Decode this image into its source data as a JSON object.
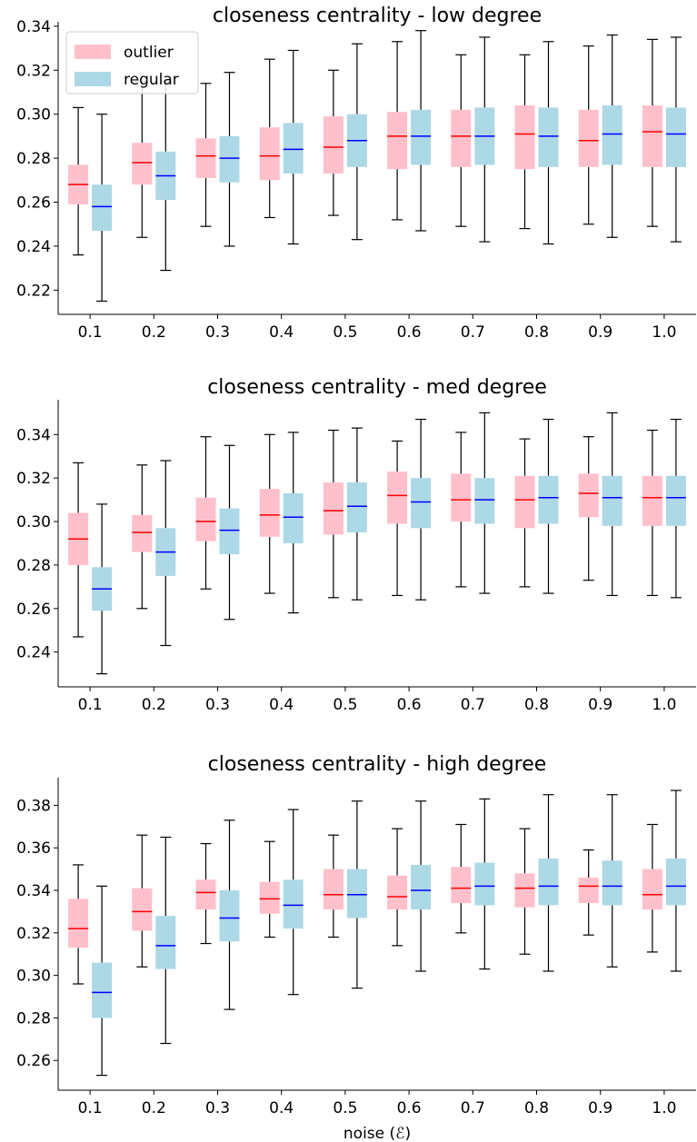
{
  "chart_data": [
    {
      "type": "box",
      "title": "closeness centrality - low degree",
      "xlabel": "",
      "ylabel": "",
      "ylim": [
        0.209,
        0.342
      ],
      "yticks": [
        "0.22",
        "0.24",
        "0.26",
        "0.28",
        "0.30",
        "0.32",
        "0.34"
      ],
      "categories": [
        "0.1",
        "0.2",
        "0.3",
        "0.4",
        "0.5",
        "0.6",
        "0.7",
        "0.8",
        "0.9",
        "1.0"
      ],
      "legend": {
        "position": "top-left",
        "entries": [
          "outlier",
          "regular"
        ]
      },
      "series": [
        {
          "name": "outlier",
          "color": "#ffc0cb",
          "median_color": "#ff0000",
          "boxes": [
            {
              "min": 0.236,
              "q1": 0.259,
              "median": 0.268,
              "q3": 0.277,
              "max": 0.303
            },
            {
              "min": 0.244,
              "q1": 0.268,
              "median": 0.278,
              "q3": 0.287,
              "max": 0.315
            },
            {
              "min": 0.249,
              "q1": 0.271,
              "median": 0.281,
              "q3": 0.289,
              "max": 0.314
            },
            {
              "min": 0.253,
              "q1": 0.27,
              "median": 0.281,
              "q3": 0.294,
              "max": 0.325
            },
            {
              "min": 0.254,
              "q1": 0.273,
              "median": 0.285,
              "q3": 0.299,
              "max": 0.32
            },
            {
              "min": 0.252,
              "q1": 0.275,
              "median": 0.29,
              "q3": 0.301,
              "max": 0.333
            },
            {
              "min": 0.249,
              "q1": 0.276,
              "median": 0.29,
              "q3": 0.302,
              "max": 0.327
            },
            {
              "min": 0.248,
              "q1": 0.275,
              "median": 0.291,
              "q3": 0.304,
              "max": 0.327
            },
            {
              "min": 0.25,
              "q1": 0.276,
              "median": 0.288,
              "q3": 0.302,
              "max": 0.331
            },
            {
              "min": 0.249,
              "q1": 0.276,
              "median": 0.292,
              "q3": 0.304,
              "max": 0.334
            }
          ]
        },
        {
          "name": "regular",
          "color": "#add8e6",
          "median_color": "#0000ff",
          "boxes": [
            {
              "min": 0.215,
              "q1": 0.247,
              "median": 0.258,
              "q3": 0.268,
              "max": 0.3
            },
            {
              "min": 0.229,
              "q1": 0.261,
              "median": 0.272,
              "q3": 0.283,
              "max": 0.315
            },
            {
              "min": 0.24,
              "q1": 0.269,
              "median": 0.28,
              "q3": 0.29,
              "max": 0.319
            },
            {
              "min": 0.241,
              "q1": 0.273,
              "median": 0.284,
              "q3": 0.296,
              "max": 0.329
            },
            {
              "min": 0.243,
              "q1": 0.276,
              "median": 0.288,
              "q3": 0.3,
              "max": 0.332
            },
            {
              "min": 0.247,
              "q1": 0.277,
              "median": 0.29,
              "q3": 0.302,
              "max": 0.338
            },
            {
              "min": 0.242,
              "q1": 0.277,
              "median": 0.29,
              "q3": 0.303,
              "max": 0.335
            },
            {
              "min": 0.241,
              "q1": 0.276,
              "median": 0.29,
              "q3": 0.303,
              "max": 0.333
            },
            {
              "min": 0.244,
              "q1": 0.277,
              "median": 0.291,
              "q3": 0.304,
              "max": 0.336
            },
            {
              "min": 0.242,
              "q1": 0.276,
              "median": 0.291,
              "q3": 0.303,
              "max": 0.335
            }
          ]
        }
      ]
    },
    {
      "type": "box",
      "title": "closeness centrality - med degree",
      "xlabel": "",
      "ylabel": "",
      "ylim": [
        0.224,
        0.356
      ],
      "yticks": [
        "0.24",
        "0.26",
        "0.28",
        "0.30",
        "0.32",
        "0.34"
      ],
      "categories": [
        "0.1",
        "0.2",
        "0.3",
        "0.4",
        "0.5",
        "0.6",
        "0.7",
        "0.8",
        "0.9",
        "1.0"
      ],
      "series": [
        {
          "name": "outlier",
          "color": "#ffc0cb",
          "median_color": "#ff0000",
          "boxes": [
            {
              "min": 0.247,
              "q1": 0.28,
              "median": 0.292,
              "q3": 0.304,
              "max": 0.327
            },
            {
              "min": 0.26,
              "q1": 0.286,
              "median": 0.295,
              "q3": 0.303,
              "max": 0.326
            },
            {
              "min": 0.269,
              "q1": 0.291,
              "median": 0.3,
              "q3": 0.311,
              "max": 0.339
            },
            {
              "min": 0.267,
              "q1": 0.293,
              "median": 0.303,
              "q3": 0.315,
              "max": 0.34
            },
            {
              "min": 0.265,
              "q1": 0.294,
              "median": 0.305,
              "q3": 0.318,
              "max": 0.342
            },
            {
              "min": 0.266,
              "q1": 0.299,
              "median": 0.312,
              "q3": 0.323,
              "max": 0.337
            },
            {
              "min": 0.27,
              "q1": 0.3,
              "median": 0.31,
              "q3": 0.322,
              "max": 0.341
            },
            {
              "min": 0.27,
              "q1": 0.297,
              "median": 0.31,
              "q3": 0.321,
              "max": 0.338
            },
            {
              "min": 0.273,
              "q1": 0.302,
              "median": 0.313,
              "q3": 0.322,
              "max": 0.339
            },
            {
              "min": 0.266,
              "q1": 0.298,
              "median": 0.311,
              "q3": 0.321,
              "max": 0.342
            }
          ]
        },
        {
          "name": "regular",
          "color": "#add8e6",
          "median_color": "#0000ff",
          "boxes": [
            {
              "min": 0.23,
              "q1": 0.259,
              "median": 0.269,
              "q3": 0.279,
              "max": 0.308
            },
            {
              "min": 0.243,
              "q1": 0.275,
              "median": 0.286,
              "q3": 0.297,
              "max": 0.328
            },
            {
              "min": 0.255,
              "q1": 0.285,
              "median": 0.296,
              "q3": 0.306,
              "max": 0.335
            },
            {
              "min": 0.258,
              "q1": 0.29,
              "median": 0.302,
              "q3": 0.313,
              "max": 0.341
            },
            {
              "min": 0.264,
              "q1": 0.295,
              "median": 0.307,
              "q3": 0.318,
              "max": 0.343
            },
            {
              "min": 0.264,
              "q1": 0.297,
              "median": 0.309,
              "q3": 0.32,
              "max": 0.347
            },
            {
              "min": 0.267,
              "q1": 0.299,
              "median": 0.31,
              "q3": 0.32,
              "max": 0.35
            },
            {
              "min": 0.267,
              "q1": 0.299,
              "median": 0.311,
              "q3": 0.321,
              "max": 0.347
            },
            {
              "min": 0.266,
              "q1": 0.298,
              "median": 0.311,
              "q3": 0.321,
              "max": 0.35
            },
            {
              "min": 0.265,
              "q1": 0.298,
              "median": 0.311,
              "q3": 0.321,
              "max": 0.347
            }
          ]
        }
      ]
    },
    {
      "type": "box",
      "title": "closeness centrality - high degree",
      "xlabel": "noise (ℰ)",
      "ylabel": "",
      "ylim": [
        0.246,
        0.393
      ],
      "yticks": [
        "0.26",
        "0.28",
        "0.30",
        "0.32",
        "0.34",
        "0.36",
        "0.38"
      ],
      "categories": [
        "0.1",
        "0.2",
        "0.3",
        "0.4",
        "0.5",
        "0.6",
        "0.7",
        "0.8",
        "0.9",
        "1.0"
      ],
      "series": [
        {
          "name": "outlier",
          "color": "#ffc0cb",
          "median_color": "#ff0000",
          "boxes": [
            {
              "min": 0.296,
              "q1": 0.313,
              "median": 0.322,
              "q3": 0.336,
              "max": 0.352
            },
            {
              "min": 0.304,
              "q1": 0.321,
              "median": 0.33,
              "q3": 0.341,
              "max": 0.366
            },
            {
              "min": 0.315,
              "q1": 0.331,
              "median": 0.339,
              "q3": 0.345,
              "max": 0.362
            },
            {
              "min": 0.318,
              "q1": 0.329,
              "median": 0.336,
              "q3": 0.344,
              "max": 0.363
            },
            {
              "min": 0.318,
              "q1": 0.331,
              "median": 0.338,
              "q3": 0.35,
              "max": 0.366
            },
            {
              "min": 0.314,
              "q1": 0.331,
              "median": 0.337,
              "q3": 0.347,
              "max": 0.369
            },
            {
              "min": 0.32,
              "q1": 0.334,
              "median": 0.341,
              "q3": 0.351,
              "max": 0.371
            },
            {
              "min": 0.31,
              "q1": 0.332,
              "median": 0.341,
              "q3": 0.348,
              "max": 0.369
            },
            {
              "min": 0.319,
              "q1": 0.334,
              "median": 0.342,
              "q3": 0.346,
              "max": 0.359
            },
            {
              "min": 0.311,
              "q1": 0.331,
              "median": 0.338,
              "q3": 0.35,
              "max": 0.371
            }
          ]
        },
        {
          "name": "regular",
          "color": "#add8e6",
          "median_color": "#0000ff",
          "boxes": [
            {
              "min": 0.253,
              "q1": 0.28,
              "median": 0.292,
              "q3": 0.306,
              "max": 0.342
            },
            {
              "min": 0.268,
              "q1": 0.303,
              "median": 0.314,
              "q3": 0.328,
              "max": 0.365
            },
            {
              "min": 0.284,
              "q1": 0.316,
              "median": 0.327,
              "q3": 0.34,
              "max": 0.373
            },
            {
              "min": 0.291,
              "q1": 0.322,
              "median": 0.333,
              "q3": 0.345,
              "max": 0.378
            },
            {
              "min": 0.294,
              "q1": 0.327,
              "median": 0.338,
              "q3": 0.35,
              "max": 0.382
            },
            {
              "min": 0.302,
              "q1": 0.331,
              "median": 0.34,
              "q3": 0.352,
              "max": 0.382
            },
            {
              "min": 0.303,
              "q1": 0.333,
              "median": 0.342,
              "q3": 0.353,
              "max": 0.383
            },
            {
              "min": 0.302,
              "q1": 0.333,
              "median": 0.342,
              "q3": 0.355,
              "max": 0.385
            },
            {
              "min": 0.304,
              "q1": 0.333,
              "median": 0.342,
              "q3": 0.354,
              "max": 0.385
            },
            {
              "min": 0.302,
              "q1": 0.333,
              "median": 0.342,
              "q3": 0.355,
              "max": 0.387
            }
          ]
        }
      ]
    }
  ]
}
